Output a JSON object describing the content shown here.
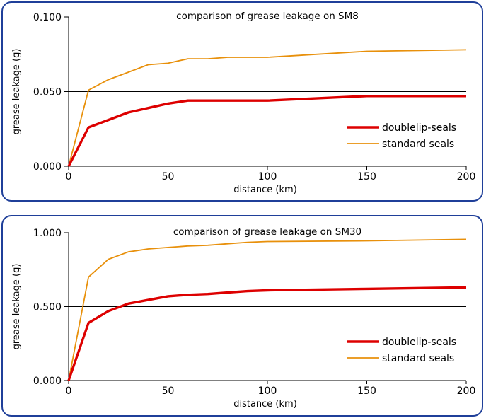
{
  "colors": {
    "doublelip": "#dd0000",
    "standard": "#e8900b",
    "border": "#1f3f99",
    "axis": "#000000"
  },
  "chart_data": [
    {
      "type": "line",
      "title": "comparison of grease leakage on SM8",
      "xlabel": "distance (km)",
      "ylabel": "grease leakage (g)",
      "xlim": [
        0,
        200
      ],
      "ylim": [
        0,
        0.1
      ],
      "xticks": [
        "0",
        "50",
        "100",
        "150",
        "200"
      ],
      "yticks": [
        "0.000",
        "0.050",
        "0.100"
      ],
      "reference_line": 0.05,
      "grid": false,
      "legend_position": "lower-right",
      "series": [
        {
          "name": "doublelip-seals",
          "color": "#dd0000",
          "x": [
            0,
            10,
            20,
            30,
            40,
            50,
            60,
            70,
            80,
            90,
            100,
            150,
            200
          ],
          "y": [
            0.0,
            0.026,
            0.031,
            0.036,
            0.039,
            0.042,
            0.044,
            0.044,
            0.044,
            0.044,
            0.044,
            0.047,
            0.047
          ]
        },
        {
          "name": "standard seals",
          "color": "#e8900b",
          "x": [
            0,
            10,
            20,
            30,
            40,
            50,
            60,
            70,
            80,
            90,
            100,
            150,
            200
          ],
          "y": [
            0.0,
            0.051,
            0.058,
            0.063,
            0.068,
            0.069,
            0.072,
            0.072,
            0.073,
            0.073,
            0.073,
            0.077,
            0.078
          ]
        }
      ]
    },
    {
      "type": "line",
      "title": "comparison of grease leakage on SM30",
      "xlabel": "distance (km)",
      "ylabel": "grease leakage (g)",
      "xlim": [
        0,
        200
      ],
      "ylim": [
        0,
        1.0
      ],
      "xticks": [
        "0",
        "50",
        "100",
        "150",
        "200"
      ],
      "yticks": [
        "0.000",
        "0.500",
        "1.000"
      ],
      "reference_line": 0.5,
      "grid": false,
      "legend_position": "lower-right",
      "series": [
        {
          "name": "doublelip-seals",
          "color": "#dd0000",
          "x": [
            0,
            10,
            20,
            30,
            40,
            50,
            60,
            70,
            80,
            90,
            100,
            150,
            200
          ],
          "y": [
            0.0,
            0.39,
            0.47,
            0.52,
            0.545,
            0.57,
            0.58,
            0.585,
            0.595,
            0.605,
            0.61,
            0.62,
            0.63
          ]
        },
        {
          "name": "standard seals",
          "color": "#e8900b",
          "x": [
            0,
            10,
            20,
            30,
            40,
            50,
            60,
            70,
            80,
            90,
            100,
            150,
            200
          ],
          "y": [
            0.0,
            0.7,
            0.82,
            0.87,
            0.89,
            0.9,
            0.91,
            0.915,
            0.925,
            0.935,
            0.94,
            0.945,
            0.955
          ]
        }
      ]
    }
  ]
}
